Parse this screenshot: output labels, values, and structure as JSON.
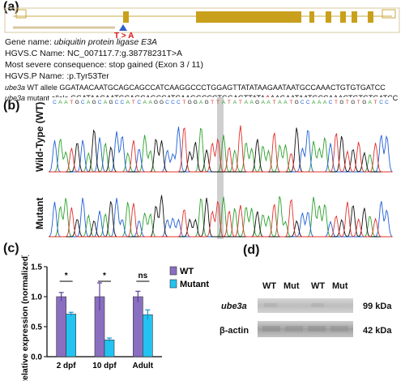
{
  "panel_labels": {
    "a": "(a)",
    "b": "(b)",
    "c": "(c)",
    "d": "(d)"
  },
  "gene_track": {
    "mutation_marker": "T > A",
    "gene_name_label": "Gene name:",
    "gene_name_value": "ubiquitin protein ligase E3A",
    "hgvs_c": "HGVS.C Name:  NC_007117.7:g.38778231T>A",
    "consequence": "Most severe consequence: stop gained (Exon 3 / 11)",
    "hgvs_p": "HGVS.P Name: :p.Tyr53Ter",
    "wt_label_gene": "ube3a",
    "wt_label_rest": " WT allele",
    "wt_seq_before": "GGATAACAATGCAGCAGCCATCAAGGCCCTGGAGTTATAT",
    "wt_seq_highlight": "",
    "wt_seq_after": "AAGAATAATGCCAAACTGTGTGATCC",
    "mut_label_gene": "ube3a",
    "mut_label_rest": " mutant allele",
    "mut_seq_before": "GGATAACAATGCAGCAGCCATCAAGGCCCTGGAGTTATA",
    "mut_seq_highlight": "A",
    "mut_seq_after": "AAGAATAATGCCAAACTGTGTGATCC"
  },
  "chromatogram": {
    "top_sequence": "CAATGCAGCAGCCATCAAGGCCCTGGAGTTATATAAGAATAATGCCAAACTGTGTGATCC",
    "wt_label": "Wild-Type (WT)",
    "mutant_label": "Mutant",
    "colors": {
      "A": "#2ca02c",
      "C": "#1f5fd6",
      "G": "#111111",
      "T": "#e0302a"
    }
  },
  "chart_data": {
    "type": "bar",
    "categories": [
      "2 dpf",
      "10 dpf",
      "Adult"
    ],
    "ylabel": "Relative expression (normalized)",
    "ylim": [
      0,
      1.5
    ],
    "yticks": [
      "0.0",
      "0.5",
      "1.0",
      "1.5"
    ],
    "series": [
      {
        "name": "WT",
        "color": "#8a6fc0",
        "values": [
          1.0,
          1.0,
          1.0
        ],
        "errors": [
          0.07,
          0.23,
          0.09
        ]
      },
      {
        "name": "Mutant",
        "color": "#22c3f0",
        "values": [
          0.71,
          0.28,
          0.7
        ],
        "errors": [
          0.03,
          0.03,
          0.08
        ]
      }
    ],
    "significance": [
      "*",
      "*",
      "ns"
    ],
    "legend": "top-right"
  },
  "western_blot": {
    "lanes": [
      "WT",
      "Mut",
      "WT",
      "Mut"
    ],
    "rows": [
      {
        "label": "ube3a",
        "weight": "99 kDa"
      },
      {
        "label": "β-actin",
        "weight": "42 kDa"
      }
    ]
  }
}
